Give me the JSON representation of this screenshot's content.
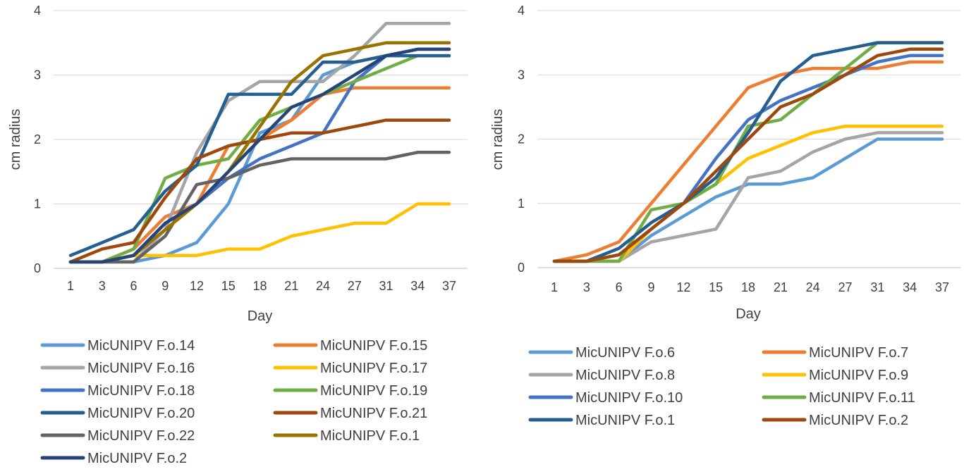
{
  "chart_data": [
    {
      "type": "line",
      "xlabel": "Day",
      "ylabel": "cm radius",
      "ylim": [
        0,
        4
      ],
      "yticks": [
        "0",
        "1",
        "2",
        "3",
        "4"
      ],
      "grid": true,
      "legend_position": "bottom",
      "categories": [
        "1",
        "3",
        "6",
        "9",
        "12",
        "15",
        "18",
        "21",
        "24",
        "27",
        "31",
        "34",
        "37"
      ],
      "series": [
        {
          "name": "MicUNIPV F.o.14",
          "color": "#5B9BD5",
          "values": [
            0.1,
            0.1,
            0.1,
            0.2,
            0.4,
            1.0,
            2.1,
            2.3,
            3.0,
            3.2,
            3.3,
            3.4,
            3.4
          ]
        },
        {
          "name": "MicUNIPV F.o.15",
          "color": "#ED7D31",
          "values": [
            0.1,
            0.1,
            0.3,
            0.8,
            1.0,
            1.9,
            2.0,
            2.3,
            2.7,
            2.8,
            2.8,
            2.8,
            2.8
          ]
        },
        {
          "name": "MicUNIPV F.o.16",
          "color": "#A5A5A5",
          "values": [
            0.1,
            0.1,
            0.1,
            0.6,
            1.8,
            2.6,
            2.9,
            2.9,
            2.9,
            3.3,
            3.8,
            3.8,
            3.8
          ]
        },
        {
          "name": "MicUNIPV F.o.17",
          "color": "#FFC000",
          "values": [
            0.1,
            0.1,
            0.2,
            0.2,
            0.2,
            0.3,
            0.3,
            0.5,
            0.6,
            0.7,
            0.7,
            1.0,
            1.0
          ]
        },
        {
          "name": "MicUNIPV F.o.18",
          "color": "#4472C4",
          "values": [
            0.1,
            0.1,
            0.2,
            0.7,
            1.0,
            1.4,
            1.7,
            1.9,
            2.1,
            2.9,
            3.3,
            3.4,
            3.4
          ]
        },
        {
          "name": "MicUNIPV F.o.19",
          "color": "#70AD47",
          "values": [
            0.1,
            0.1,
            0.3,
            1.4,
            1.6,
            1.7,
            2.3,
            2.5,
            2.7,
            2.9,
            3.1,
            3.3,
            3.3
          ]
        },
        {
          "name": "MicUNIPV F.o.20",
          "color": "#255E91",
          "values": [
            0.2,
            0.4,
            0.6,
            1.2,
            1.6,
            2.7,
            2.7,
            2.7,
            3.2,
            3.2,
            3.3,
            3.3,
            3.3
          ]
        },
        {
          "name": "MicUNIPV F.o.21",
          "color": "#9E480E",
          "values": [
            0.1,
            0.3,
            0.4,
            1.1,
            1.7,
            1.9,
            2.0,
            2.1,
            2.1,
            2.2,
            2.3,
            2.3,
            2.3
          ]
        },
        {
          "name": "MicUNIPV F.o.22",
          "color": "#636363",
          "values": [
            0.1,
            0.1,
            0.1,
            0.5,
            1.3,
            1.4,
            1.6,
            1.7,
            1.7,
            1.7,
            1.7,
            1.8,
            1.8
          ]
        },
        {
          "name": "MicUNIPV F.o.1",
          "color": "#997300",
          "values": [
            0.1,
            0.1,
            0.2,
            0.6,
            1.0,
            1.5,
            2.2,
            2.9,
            3.3,
            3.4,
            3.5,
            3.5,
            3.5
          ]
        },
        {
          "name": "MicUNIPV F.o.2",
          "color": "#264478",
          "values": [
            0.1,
            0.1,
            0.2,
            0.7,
            1.0,
            1.5,
            2.0,
            2.5,
            2.7,
            3.0,
            3.3,
            3.4,
            3.4
          ]
        }
      ]
    },
    {
      "type": "line",
      "xlabel": "Day",
      "ylabel": "cm radius",
      "ylim": [
        0,
        4
      ],
      "yticks": [
        "0",
        "1",
        "2",
        "3",
        "4"
      ],
      "grid": true,
      "legend_position": "bottom",
      "categories": [
        "1",
        "3",
        "6",
        "9",
        "12",
        "15",
        "18",
        "21",
        "24",
        "27",
        "31",
        "34",
        "37"
      ],
      "series": [
        {
          "name": "MicUNIPV F.o.6",
          "color": "#5B9BD5",
          "values": [
            0.1,
            0.1,
            0.1,
            0.5,
            0.8,
            1.1,
            1.3,
            1.3,
            1.4,
            1.7,
            2.0,
            2.0,
            2.0
          ]
        },
        {
          "name": "MicUNIPV F.o.7",
          "color": "#ED7D31",
          "values": [
            0.1,
            0.2,
            0.4,
            1.0,
            1.6,
            2.2,
            2.8,
            3.0,
            3.1,
            3.1,
            3.1,
            3.2,
            3.2
          ]
        },
        {
          "name": "MicUNIPV F.o.8",
          "color": "#A5A5A5",
          "values": [
            0.1,
            0.1,
            0.1,
            0.4,
            0.5,
            0.6,
            1.4,
            1.5,
            1.8,
            2.0,
            2.1,
            2.1,
            2.1
          ]
        },
        {
          "name": "MicUNIPV F.o.9",
          "color": "#FFC000",
          "values": [
            0.1,
            0.1,
            0.1,
            0.6,
            1.0,
            1.3,
            1.7,
            1.9,
            2.1,
            2.2,
            2.2,
            2.2,
            2.2
          ]
        },
        {
          "name": "MicUNIPV F.o.10",
          "color": "#4472C4",
          "values": [
            0.1,
            0.1,
            0.2,
            0.6,
            1.0,
            1.7,
            2.3,
            2.6,
            2.8,
            3.0,
            3.2,
            3.3,
            3.3
          ]
        },
        {
          "name": "MicUNIPV F.o.11",
          "color": "#70AD47",
          "values": [
            0.1,
            0.1,
            0.1,
            0.9,
            1.0,
            1.3,
            2.2,
            2.3,
            2.7,
            3.1,
            3.5,
            3.5,
            3.5
          ]
        },
        {
          "name": "MicUNIPV F.o.1",
          "color": "#255E91",
          "values": [
            0.1,
            0.1,
            0.3,
            0.7,
            1.0,
            1.4,
            2.1,
            2.9,
            3.3,
            3.4,
            3.5,
            3.5,
            3.5
          ]
        },
        {
          "name": "MicUNIPV F.o.2",
          "color": "#9E480E",
          "values": [
            0.1,
            0.1,
            0.2,
            0.6,
            1.0,
            1.5,
            2.0,
            2.5,
            2.7,
            3.0,
            3.3,
            3.4,
            3.4
          ]
        }
      ]
    }
  ]
}
